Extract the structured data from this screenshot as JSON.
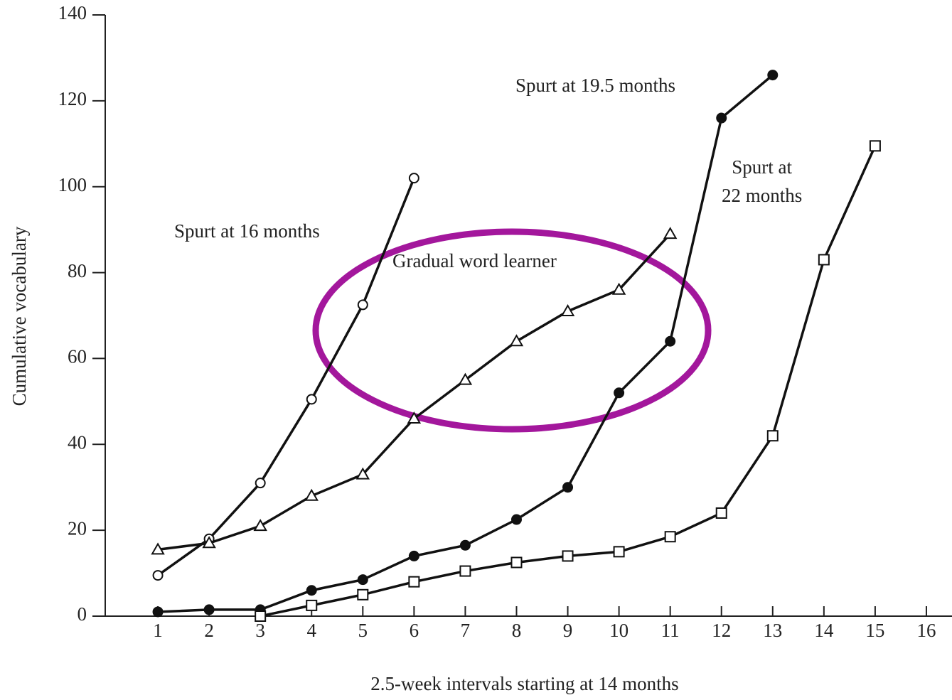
{
  "chart_data": {
    "type": "line",
    "x_label": "2.5-week intervals starting at 14 months",
    "y_label": "Cumulative vocabulary",
    "x": [
      1,
      2,
      3,
      4,
      5,
      6,
      7,
      8,
      9,
      10,
      11,
      12,
      13,
      14,
      15,
      16
    ],
    "series": [
      {
        "name": "Spurt at 16 months",
        "color": "#111111",
        "marker": "circle-open",
        "values": [
          9.5,
          18,
          31,
          50.5,
          72.5,
          102,
          null,
          null,
          null,
          null,
          null,
          null,
          null,
          null,
          null,
          null
        ]
      },
      {
        "name": "Gradual word learner",
        "color": "#111111",
        "marker": "triangle-open",
        "values": [
          15.5,
          17,
          21,
          28,
          33,
          46,
          55,
          64,
          71,
          76,
          89,
          null,
          null,
          null,
          null,
          null
        ]
      },
      {
        "name": "Spurt at 19.5 months",
        "color": "#111111",
        "marker": "circle-filled",
        "values": [
          1,
          1.5,
          1.5,
          6,
          8.5,
          14,
          16.5,
          22.5,
          30,
          52,
          64,
          116,
          126,
          null,
          null,
          null
        ]
      },
      {
        "name": "Spurt at\n22 months",
        "color": "#111111",
        "marker": "square-open",
        "values": [
          null,
          null,
          0,
          2.5,
          5,
          8,
          10.5,
          12.5,
          14,
          15,
          18.5,
          24,
          42,
          83,
          109.5,
          null
        ]
      }
    ],
    "xlim": [
      0,
      16.5
    ],
    "ylim": [
      0,
      140
    ],
    "xticks": [
      1,
      2,
      3,
      4,
      5,
      6,
      7,
      8,
      9,
      10,
      11,
      12,
      13,
      14,
      15,
      16
    ],
    "yticks": [
      0,
      20,
      40,
      60,
      80,
      100,
      120,
      140
    ],
    "highlight_color": "#a3179c"
  }
}
